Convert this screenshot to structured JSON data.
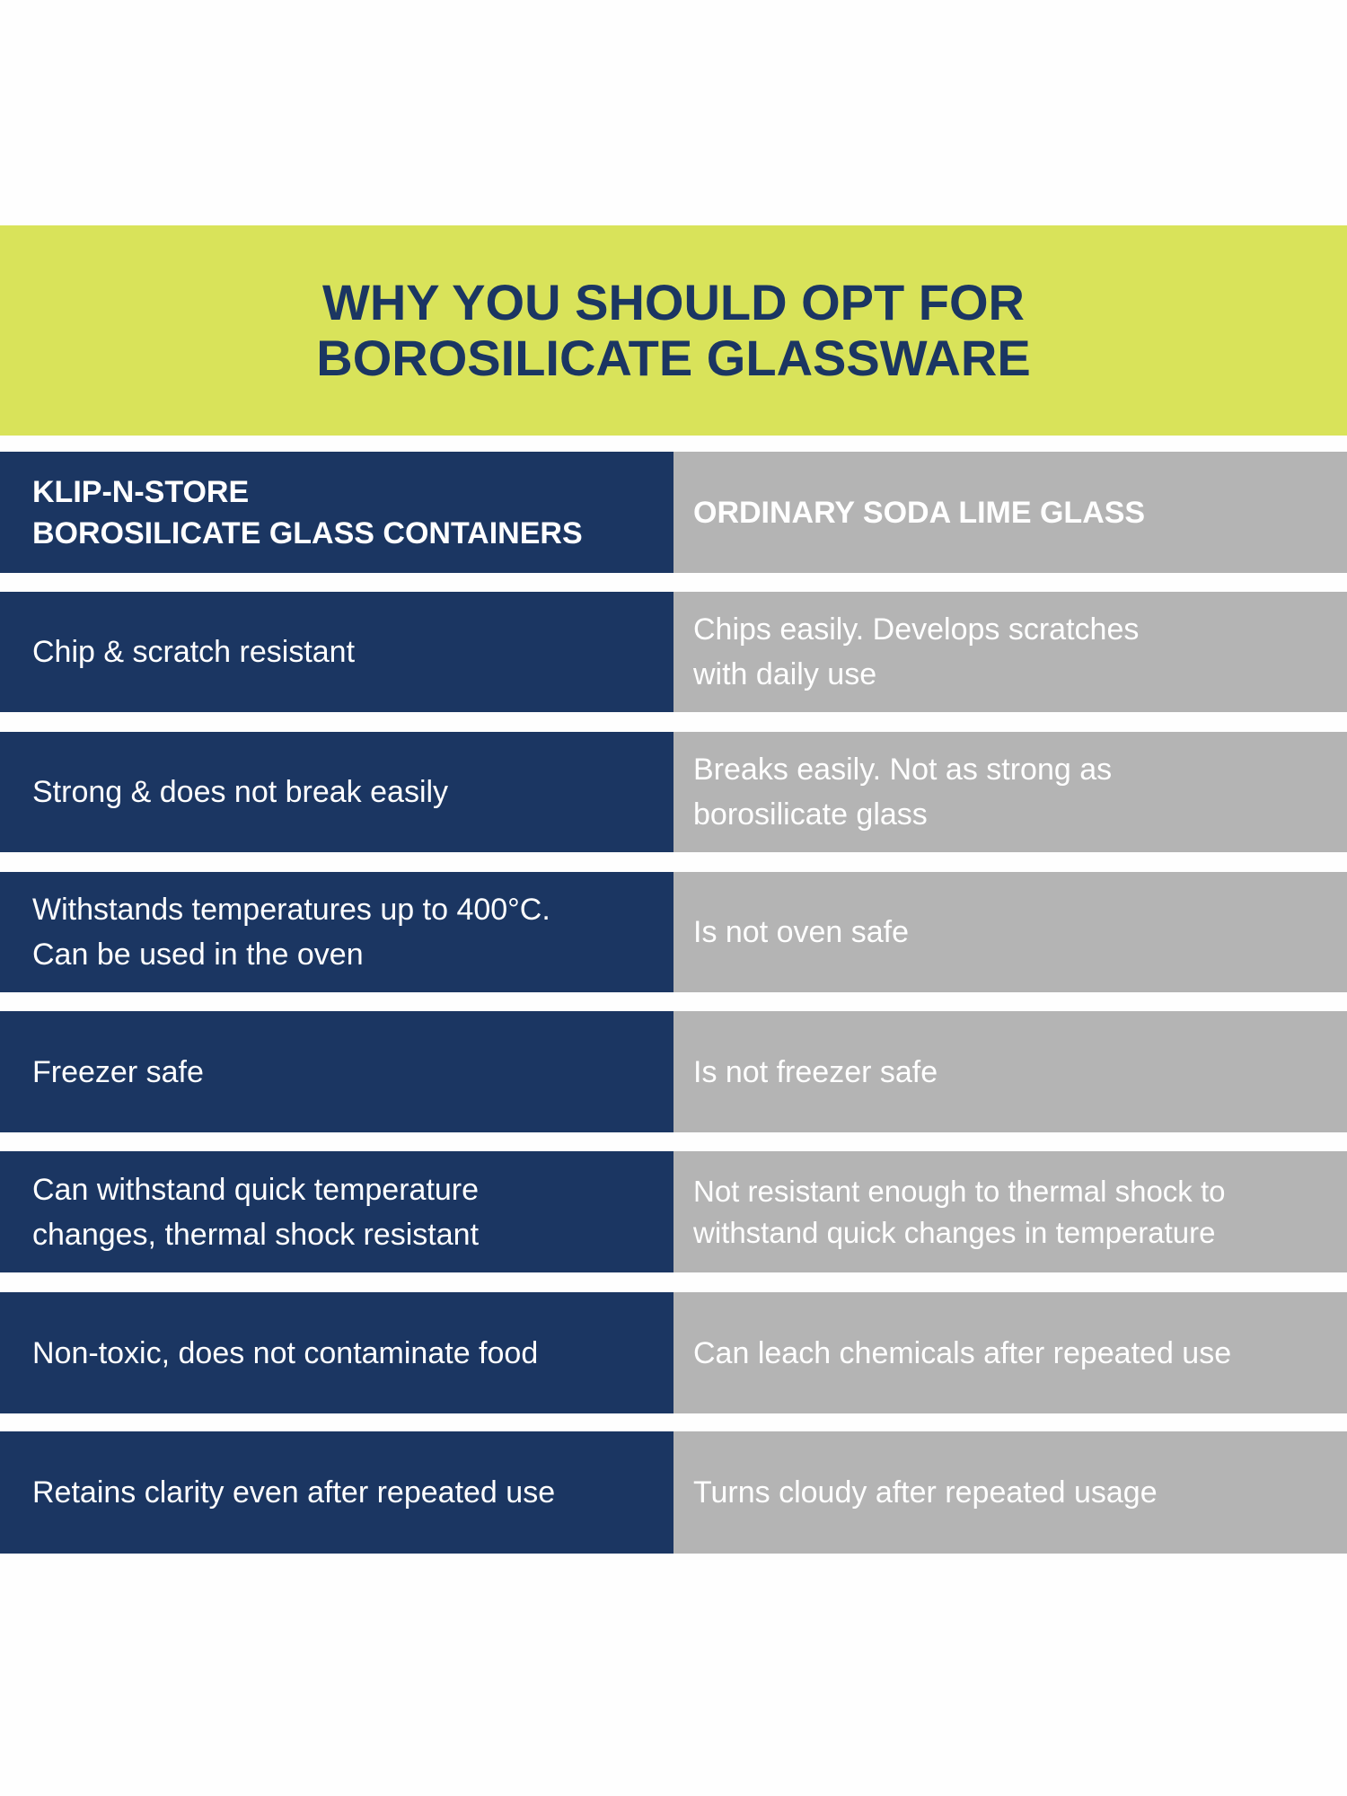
{
  "title": {
    "line1": "WHY YOU SHOULD OPT FOR",
    "line2": "BOROSILICATE GLASSWARE"
  },
  "colors": {
    "banner": "#d9e35a",
    "navy": "#1b3662",
    "gray": "#b4b4b4"
  },
  "header": {
    "left_line1": "KLIP-N-STORE",
    "left_line2": "BOROSILICATE GLASS CONTAINERS",
    "right": "ORDINARY SODA LIME GLASS"
  },
  "rows": [
    {
      "left": "Chip & scratch resistant",
      "right": "Chips easily. Develops scratches with daily use"
    },
    {
      "left": "Strong & does not break easily",
      "right": "Breaks easily. Not as strong as borosilicate glass"
    },
    {
      "left": "Withstands temperatures up to 400°C. Can be used in the oven",
      "right": "Is not oven safe"
    },
    {
      "left": "Freezer safe",
      "right": "Is not freezer safe"
    },
    {
      "left": "Can withstand quick temperature changes, thermal shock resistant",
      "right": "Not resistant enough to thermal shock to withstand quick changes in temperature"
    },
    {
      "left": "Non-toxic, does not contaminate food",
      "right": "Can leach chemicals after repeated use"
    },
    {
      "left": "Retains clarity even after repeated use",
      "right": "Turns cloudy after repeated usage"
    }
  ]
}
